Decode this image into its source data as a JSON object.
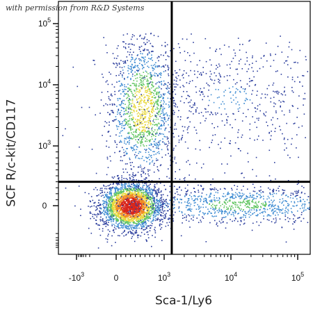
{
  "watermark": "with permission from R&D Systems",
  "chart_data": {
    "type": "scatter",
    "plot_style": "flow cytometry density dot plot with quadrant gates",
    "xlabel": "Sca-1/Ly6",
    "ylabel": "SCF R/c-kit/CD117",
    "x_scale": "biexponential",
    "y_scale": "biexponential",
    "x_ticks": [
      {
        "base": "-10",
        "exp": "3",
        "value": -1000
      },
      {
        "base": "0",
        "exp": "",
        "value": 0
      },
      {
        "base": "10",
        "exp": "3",
        "value": 1000
      },
      {
        "base": "10",
        "exp": "4",
        "value": 10000
      },
      {
        "base": "10",
        "exp": "5",
        "value": 100000
      }
    ],
    "y_ticks": [
      {
        "base": "0",
        "exp": "",
        "value": 0
      },
      {
        "base": "10",
        "exp": "3",
        "value": 1000
      },
      {
        "base": "10",
        "exp": "4",
        "value": 10000
      },
      {
        "base": "10",
        "exp": "5",
        "value": 100000
      }
    ],
    "quadrant_gate": {
      "x": 1300,
      "y": 400
    },
    "populations": [
      {
        "center_x": 300,
        "center_y": 0,
        "density": "very high"
      },
      {
        "center_x": 400,
        "center_y": 3000,
        "density": "high"
      },
      {
        "center_x": 20000,
        "center_y": 0,
        "density": "medium"
      },
      {
        "center_x": 12000,
        "center_y": 8000,
        "density": "low"
      }
    ],
    "colors": {
      "low": "#2a3c9c",
      "mid_low": "#3d8bd2",
      "mid": "#5fc45f",
      "mid_high": "#e8d83a",
      "high": "#f08a24",
      "max": "#d8261c"
    }
  }
}
